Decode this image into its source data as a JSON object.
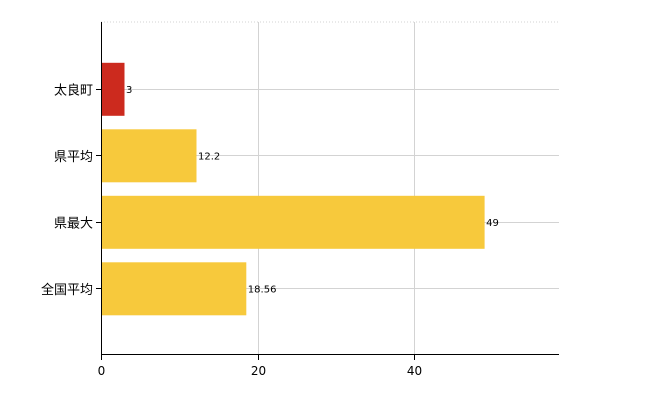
{
  "chart_data": {
    "type": "bar",
    "orientation": "horizontal",
    "categories": [
      "太良町",
      "県平均",
      "県最大",
      "全国平均"
    ],
    "values": [
      3,
      12.2,
      49,
      18.56
    ],
    "data_labels": [
      "3",
      "12.2",
      "49",
      "18.56"
    ],
    "bar_colors": [
      "#cc2a1e",
      "#f7c93c",
      "#f7c93c",
      "#f7c93c"
    ],
    "xlim": [
      0,
      58.5
    ],
    "xticks": [
      0,
      20,
      40
    ],
    "xtick_labels": [
      "0",
      "20",
      "40"
    ],
    "grid": true,
    "legend": "none"
  },
  "colors": {
    "highlight": "#cc2a1e",
    "bar": "#f7c93c",
    "grid": "#d3d3d3",
    "axis": "#000000"
  }
}
